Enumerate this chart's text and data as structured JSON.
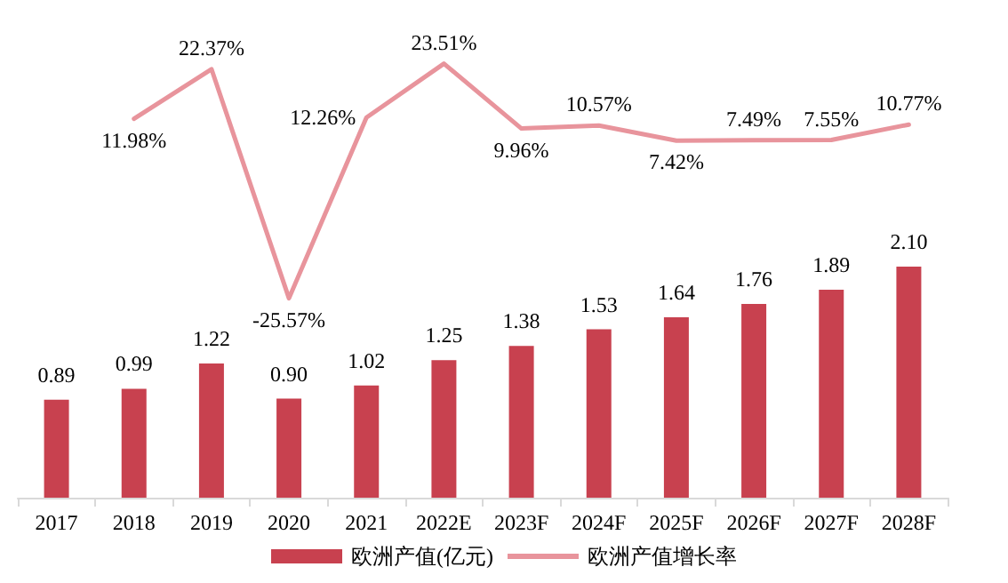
{
  "chart_data": {
    "type": "bar",
    "categories": [
      "2017",
      "2018",
      "2019",
      "2020",
      "2021",
      "2022E",
      "2023F",
      "2024F",
      "2025F",
      "2026F",
      "2027F",
      "2028F"
    ],
    "series": [
      {
        "name": "欧洲产值(亿元)",
        "type": "bar",
        "color": "#c8414f",
        "values": [
          0.89,
          0.99,
          1.22,
          0.9,
          1.02,
          1.25,
          1.38,
          1.53,
          1.64,
          1.76,
          1.89,
          2.1
        ],
        "value_labels": [
          "0.89",
          "0.99",
          "1.22",
          "0.90",
          "1.02",
          "1.25",
          "1.38",
          "1.53",
          "1.64",
          "1.76",
          "1.89",
          "2.10"
        ]
      },
      {
        "name": "欧洲产值增长率",
        "type": "line",
        "axis": "y2",
        "color": "#e8949c",
        "marker": "none",
        "values": [
          null,
          11.98,
          22.37,
          -25.57,
          12.26,
          23.51,
          9.96,
          10.57,
          7.42,
          7.49,
          7.55,
          10.77
        ],
        "value_labels": [
          null,
          "11.98%",
          "22.37%",
          "-25.57%",
          "12.26%",
          "23.51%",
          "9.96%",
          "10.57%",
          "7.42%",
          "7.49%",
          "7.55%",
          "10.77%"
        ]
      }
    ],
    "tick_labels": "x",
    "grid": false,
    "legend": "bottom"
  }
}
